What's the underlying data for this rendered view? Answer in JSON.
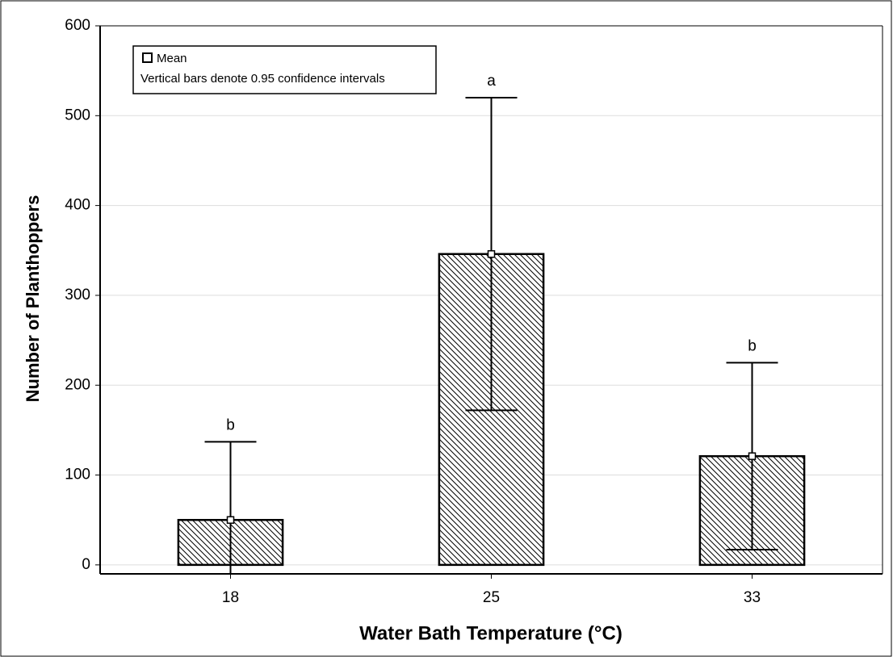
{
  "chart_data": {
    "type": "bar",
    "xlabel": "Water Bath Temperature (°C)",
    "ylabel": "Number of Planthoppers",
    "categories": [
      "18",
      "25",
      "33"
    ],
    "values": [
      50,
      346,
      121
    ],
    "errors": [
      87,
      174,
      104
    ],
    "annotations": [
      "b",
      "a",
      "b"
    ],
    "legend": {
      "marker": "Mean",
      "note": "Vertical bars denote 0.95 confidence intervals"
    },
    "color": "#000000",
    "ylim": [
      -10,
      600
    ],
    "yticks": [
      0,
      100,
      200,
      300,
      400,
      500,
      600
    ],
    "grid": true
  }
}
